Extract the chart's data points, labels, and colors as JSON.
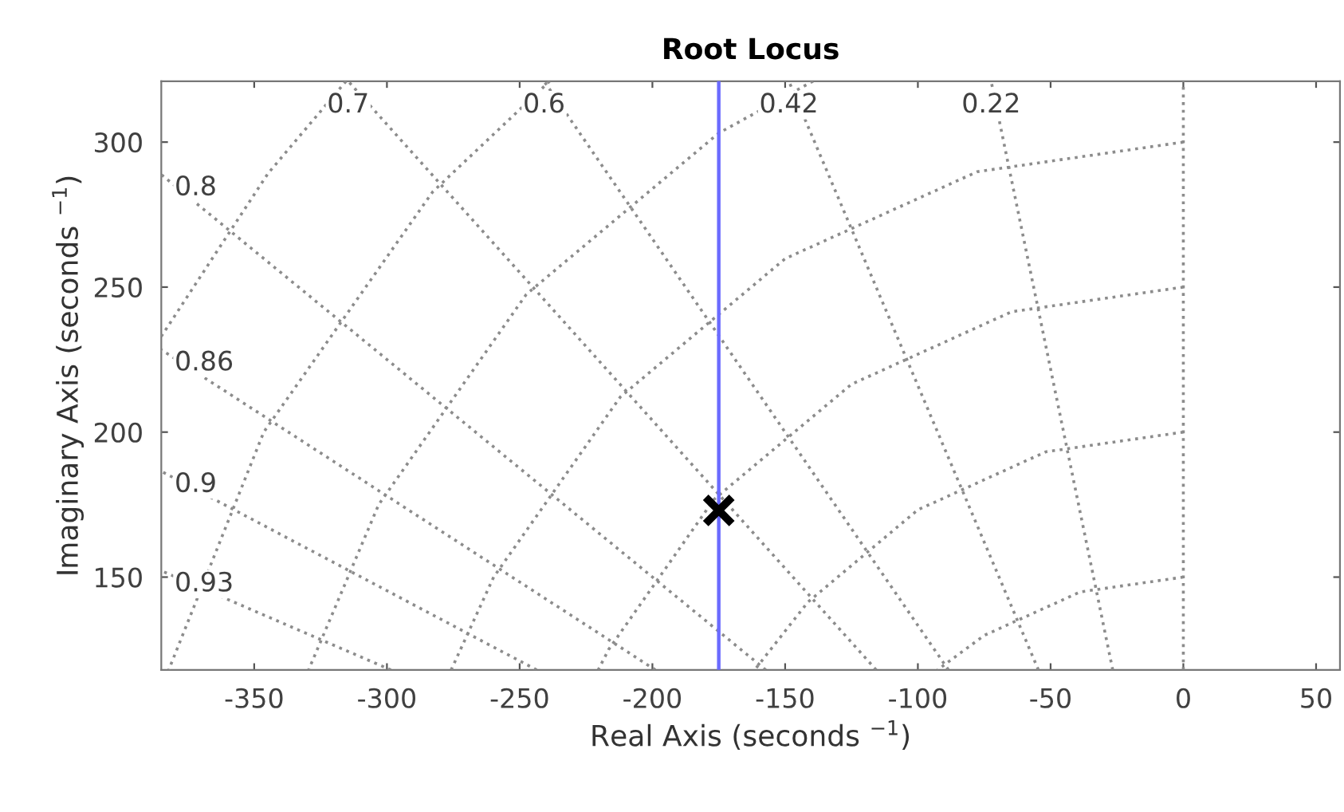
{
  "chart_data": {
    "type": "line",
    "title": "Root Locus",
    "xlabel": "Real Axis (seconds $^{−1}$)",
    "ylabel": "Imaginary Axis (seconds $^{−1}$)",
    "xlim": [
      -385,
      59
    ],
    "ylim": [
      118,
      321
    ],
    "xticks": [
      -350,
      -300,
      -250,
      -200,
      -150,
      -100,
      -50,
      0,
      50
    ],
    "yticks": [
      150,
      200,
      250,
      300
    ],
    "grid": false,
    "legend": false,
    "ref_lines": [
      {
        "axis": "x",
        "value": 0,
        "color": "#8c8c8c",
        "line_style": "dotted"
      }
    ],
    "series": [
      {
        "name": "0.22",
        "color": "#8c8c8c",
        "line_style": "dotted",
        "x": [
          -26.6,
          -72.4
        ],
        "values": [
          118,
          321
        ]
      },
      {
        "name": "0.42",
        "color": "#8c8c8c",
        "line_style": "dotted",
        "x": [
          -54.6,
          -148.6
        ],
        "values": [
          118,
          321
        ]
      },
      {
        "name": "0.6",
        "color": "#8c8c8c",
        "line_style": "dotted",
        "x": [
          -88.5,
          -240.8
        ],
        "values": [
          118,
          321
        ]
      },
      {
        "name": "0.7",
        "color": "#8c8c8c",
        "line_style": "dotted",
        "x": [
          -115.7,
          -314.6
        ],
        "values": [
          118,
          321
        ]
      },
      {
        "name": "0.8",
        "color": "#8c8c8c",
        "line_style": "dotted",
        "x": [
          -157.3,
          -385
        ],
        "values": [
          118,
          288.8
        ]
      },
      {
        "name": "0.86",
        "color": "#8c8c8c",
        "line_style": "dotted",
        "x": [
          -198.9,
          -385
        ],
        "values": [
          118,
          228.4
        ]
      },
      {
        "name": "0.9",
        "color": "#8c8c8c",
        "line_style": "dotted",
        "x": [
          -243.6,
          -385
        ],
        "values": [
          118,
          186.5
        ]
      },
      {
        "name": "0.93",
        "color": "#8c8c8c",
        "line_style": "dotted",
        "x": [
          -298.5,
          -385
        ],
        "values": [
          118,
          152.2
        ]
      },
      {
        "color": "#8c8c8c",
        "line_style": "dotted",
        "x": [
          0,
          -38.8,
          -75,
          -92.6
        ],
        "values": [
          150,
          144.9,
          129.9,
          118
        ]
      },
      {
        "color": "#8c8c8c",
        "line_style": "dotted",
        "x": [
          0,
          -51.8,
          -100,
          -141.4,
          -161.5
        ],
        "values": [
          200,
          193.2,
          173.2,
          141.4,
          118
        ]
      },
      {
        "color": "#8c8c8c",
        "line_style": "dotted",
        "x": [
          0,
          -64.7,
          -125,
          -176.8,
          -216.5,
          -220.4
        ],
        "values": [
          250,
          241.5,
          216.5,
          176.8,
          125,
          118
        ]
      },
      {
        "color": "#8c8c8c",
        "line_style": "dotted",
        "x": [
          0,
          -77.6,
          -150,
          -212.1,
          -259.8,
          -275.8
        ],
        "values": [
          300,
          289.8,
          259.8,
          212.1,
          150,
          118
        ]
      },
      {
        "color": "#8c8c8c",
        "line_style": "dotted",
        "x": [
          -139.5,
          -175,
          -247.5,
          -303.1,
          -329.5
        ],
        "values": [
          321,
          303.1,
          247.5,
          175,
          118
        ]
      },
      {
        "color": "#8c8c8c",
        "line_style": "dotted",
        "x": [
          -238.7,
          -282.8,
          -346.4,
          -382.2
        ],
        "values": [
          321,
          282.8,
          200,
          118
        ]
      },
      {
        "color": "#8c8c8c",
        "line_style": "dotted",
        "x": [
          -315.4,
          -344.7,
          -385
        ],
        "values": [
          321,
          289.3,
          233
        ]
      },
      {
        "color": "#6b6bff",
        "line_style": "solid",
        "x": [
          -175,
          -175
        ],
        "values": [
          118,
          321
        ]
      },
      {
        "type": "scatter",
        "color": "#000000",
        "marker": "cross",
        "x": [
          -175
        ],
        "values": [
          173
        ]
      }
    ]
  }
}
